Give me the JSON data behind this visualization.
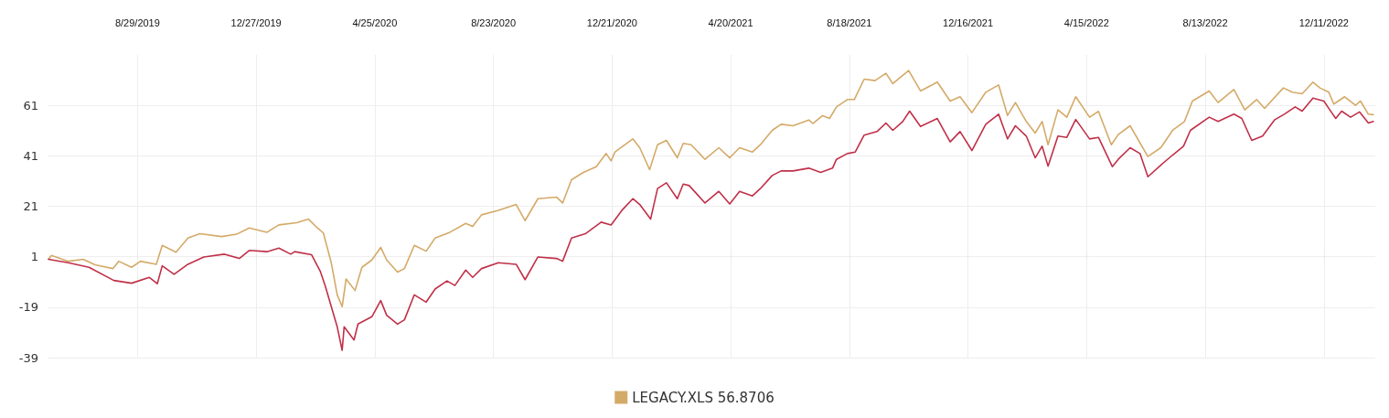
{
  "chart_data": {
    "type": "line",
    "xlim": [
      "2019-05-30",
      "2023-02-01"
    ],
    "xticks": [
      {
        "value": "2019-08-29",
        "label": "8/29/2019"
      },
      {
        "value": "2019-12-27",
        "label": "12/27/2019"
      },
      {
        "value": "2020-04-25",
        "label": "4/25/2020"
      },
      {
        "value": "2020-08-23",
        "label": "8/23/2020"
      },
      {
        "value": "2020-12-21",
        "label": "12/21/2020"
      },
      {
        "value": "2021-04-20",
        "label": "4/20/2021"
      },
      {
        "value": "2021-08-18",
        "label": "8/18/2021"
      },
      {
        "value": "2021-12-16",
        "label": "12/16/2021"
      },
      {
        "value": "2022-04-15",
        "label": "4/15/2022"
      },
      {
        "value": "2022-08-13",
        "label": "8/13/2022"
      },
      {
        "value": "2022-12-11",
        "label": "12/11/2022"
      }
    ],
    "ylim": [
      -39,
      81
    ],
    "yticks": [
      -39,
      -19,
      1,
      21,
      41,
      61
    ],
    "grid": true,
    "legend": "bottom",
    "series": [
      {
        "name": "LEGACY.XLS 56.8706",
        "color": "#d4aa68",
        "x": [
          "2019-05-31",
          "2019-06-03",
          "2019-06-20",
          "2019-07-05",
          "2019-07-17",
          "2019-08-04",
          "2019-08-10",
          "2019-08-23",
          "2019-09-01",
          "2019-09-17",
          "2019-09-23",
          "2019-10-07",
          "2019-10-19",
          "2019-10-31",
          "2019-11-22",
          "2019-12-07",
          "2019-12-20",
          "2020-01-07",
          "2020-01-19",
          "2020-02-06",
          "2020-02-18",
          "2020-02-27",
          "2020-03-04",
          "2020-03-12",
          "2020-03-18",
          "2020-03-23",
          "2020-03-27",
          "2020-04-05",
          "2020-04-12",
          "2020-04-22",
          "2020-05-01",
          "2020-05-07",
          "2020-05-18",
          "2020-05-25",
          "2020-06-04",
          "2020-06-16",
          "2020-06-25",
          "2020-07-10",
          "2020-07-26",
          "2020-08-02",
          "2020-08-11",
          "2020-08-28",
          "2020-09-15",
          "2020-09-24",
          "2020-10-07",
          "2020-10-26",
          "2020-11-01",
          "2020-11-10",
          "2020-11-22",
          "2020-12-05",
          "2020-12-15",
          "2020-12-20",
          "2020-12-24",
          "2021-01-11",
          "2021-01-18",
          "2021-01-28",
          "2021-02-05",
          "2021-02-14",
          "2021-02-25",
          "2021-03-03",
          "2021-03-11",
          "2021-03-25",
          "2021-04-08",
          "2021-04-19",
          "2021-04-29",
          "2021-05-12",
          "2021-05-20",
          "2021-06-01",
          "2021-06-10",
          "2021-06-22",
          "2021-07-08",
          "2021-07-12",
          "2021-07-22",
          "2021-07-29",
          "2021-08-05",
          "2021-08-16",
          "2021-08-23",
          "2021-09-02",
          "2021-09-13",
          "2021-09-24",
          "2021-10-01",
          "2021-10-17",
          "2021-10-29",
          "2021-11-15",
          "2021-11-28",
          "2021-12-08",
          "2021-12-20",
          "2022-01-03",
          "2022-01-16",
          "2022-01-25",
          "2022-02-02",
          "2022-02-13",
          "2022-02-22",
          "2022-03-01",
          "2022-03-07",
          "2022-03-17",
          "2022-03-26",
          "2022-04-04",
          "2022-04-18",
          "2022-04-27",
          "2022-05-10",
          "2022-05-17",
          "2022-05-29",
          "2022-06-16",
          "2022-06-29",
          "2022-07-11",
          "2022-07-23",
          "2022-07-31",
          "2022-08-17",
          "2022-08-26",
          "2022-09-11",
          "2022-09-22",
          "2022-10-04",
          "2022-10-12",
          "2022-10-31",
          "2022-11-09",
          "2022-11-19",
          "2022-11-30",
          "2022-12-07",
          "2022-12-16",
          "2022-12-21",
          "2023-01-01",
          "2023-01-12",
          "2023-01-17",
          "2023-01-25",
          "2023-01-30"
        ],
        "values": [
          0,
          1.5,
          -0.8,
          0,
          -2.2,
          -3.7,
          -0.8,
          -3.2,
          -0.8,
          -2,
          5.5,
          2.8,
          8.4,
          10.1,
          9,
          9.9,
          12.4,
          10.7,
          13.6,
          14.5,
          15.9,
          12.4,
          10.4,
          -1.4,
          -14.1,
          -18.8,
          -7.8,
          -12.4,
          -3.2,
          -0.3,
          4.7,
          -0.3,
          -5.1,
          -3.7,
          5.5,
          3.2,
          8.4,
          10.7,
          14.2,
          13,
          17.6,
          19.4,
          21.7,
          15.3,
          24,
          24.6,
          22.3,
          31.5,
          34.4,
          36.7,
          41.9,
          39,
          42.5,
          47.7,
          44.2,
          35.5,
          45.4,
          47.1,
          40.2,
          45.9,
          45.4,
          39.6,
          44.2,
          40.2,
          44.2,
          42.5,
          45.4,
          51.1,
          53.5,
          52.9,
          55.2,
          53.8,
          56.9,
          55.8,
          60.4,
          63.3,
          63.3,
          71.4,
          70.8,
          73.7,
          69.6,
          74.8,
          66.7,
          70.2,
          62.7,
          64.4,
          58.1,
          66.2,
          69.1,
          57,
          62.1,
          54.6,
          50,
          54.6,
          45.4,
          59.2,
          56.3,
          64.4,
          56.3,
          58.6,
          45.4,
          49.4,
          52.9,
          40.7,
          44.2,
          51.1,
          54.6,
          62.7,
          66.7,
          62.1,
          67.3,
          59.2,
          63.3,
          59.8,
          67.9,
          66.2,
          65.6,
          70.2,
          67.9,
          66.2,
          61.5,
          64.4,
          61,
          62.7,
          57.5,
          57.3
        ]
      },
      {
        "color": "#c03048",
        "x": [
          "2019-05-31",
          "2019-06-20",
          "2019-07-11",
          "2019-08-05",
          "2019-08-23",
          "2019-09-10",
          "2019-09-18",
          "2019-09-23",
          "2019-10-05",
          "2019-10-19",
          "2019-11-04",
          "2019-11-25",
          "2019-12-10",
          "2019-12-20",
          "2020-01-07",
          "2020-01-19",
          "2020-01-31",
          "2020-02-04",
          "2020-02-21",
          "2020-03-01",
          "2020-03-06",
          "2020-03-12",
          "2020-03-18",
          "2020-03-23",
          "2020-03-25",
          "2020-04-04",
          "2020-04-08",
          "2020-04-22",
          "2020-05-01",
          "2020-05-07",
          "2020-05-18",
          "2020-05-25",
          "2020-06-04",
          "2020-06-16",
          "2020-06-25",
          "2020-07-07",
          "2020-07-15",
          "2020-07-26",
          "2020-08-02",
          "2020-08-11",
          "2020-08-28",
          "2020-09-15",
          "2020-09-24",
          "2020-10-07",
          "2020-10-26",
          "2020-11-01",
          "2020-11-10",
          "2020-11-24",
          "2020-12-10",
          "2020-12-20",
          "2020-12-31",
          "2021-01-11",
          "2021-01-18",
          "2021-01-29",
          "2021-02-05",
          "2021-02-14",
          "2021-02-25",
          "2021-03-03",
          "2021-03-09",
          "2021-03-25",
          "2021-04-08",
          "2021-04-19",
          "2021-04-29",
          "2021-05-12",
          "2021-05-20",
          "2021-06-01",
          "2021-06-10",
          "2021-06-22",
          "2021-07-08",
          "2021-07-20",
          "2021-08-01",
          "2021-08-05",
          "2021-08-16",
          "2021-08-24",
          "2021-09-02",
          "2021-09-15",
          "2021-09-24",
          "2021-10-01",
          "2021-10-11",
          "2021-10-18",
          "2021-10-29",
          "2021-11-15",
          "2021-11-28",
          "2021-12-08",
          "2021-12-20",
          "2022-01-03",
          "2022-01-16",
          "2022-01-25",
          "2022-02-02",
          "2022-02-13",
          "2022-02-22",
          "2022-03-01",
          "2022-03-07",
          "2022-03-17",
          "2022-03-26",
          "2022-04-04",
          "2022-04-18",
          "2022-04-27",
          "2022-05-11",
          "2022-05-17",
          "2022-05-29",
          "2022-06-08",
          "2022-06-16",
          "2022-06-29",
          "2022-07-11",
          "2022-07-22",
          "2022-07-29",
          "2022-08-17",
          "2022-08-26",
          "2022-09-11",
          "2022-09-19",
          "2022-09-29",
          "2022-10-10",
          "2022-10-22",
          "2022-11-01",
          "2022-11-12",
          "2022-11-19",
          "2022-11-30",
          "2022-12-11",
          "2022-12-17",
          "2022-12-23",
          "2022-12-29",
          "2023-01-07",
          "2023-01-16",
          "2023-01-25",
          "2023-01-30"
        ],
        "values": [
          0,
          -1.4,
          -3.2,
          -8.4,
          -9.5,
          -7.2,
          -9.7,
          -2.6,
          -6,
          -2,
          0.9,
          2,
          0.3,
          3.5,
          3,
          4.4,
          2,
          3,
          1.8,
          -4.9,
          -10.7,
          -18.8,
          -26.8,
          -36.1,
          -26.8,
          -32,
          -25.7,
          -22.8,
          -16.4,
          -22.2,
          -25.7,
          -24,
          -14.1,
          -17,
          -11.8,
          -8.6,
          -10.4,
          -4.3,
          -7.2,
          -3.7,
          -1.4,
          -2,
          -8.1,
          0.9,
          0.3,
          -0.8,
          8.4,
          10.1,
          14.7,
          13.6,
          19.4,
          24,
          21.7,
          15.9,
          28,
          30.3,
          24,
          29.8,
          29.2,
          22.3,
          26.9,
          21.9,
          26.9,
          25.1,
          28,
          33.2,
          35,
          35,
          36.1,
          34.4,
          36.1,
          39.6,
          41.9,
          42.5,
          49.2,
          50.6,
          54,
          51.1,
          54.6,
          58.7,
          52.6,
          55.8,
          46.5,
          50.6,
          43.1,
          53.5,
          57.5,
          47.7,
          52.9,
          48.8,
          40.2,
          44.8,
          36.9,
          48.8,
          48.3,
          55.4,
          47.7,
          48.3,
          36.7,
          39.6,
          44.2,
          41.9,
          32.7,
          37.3,
          41.3,
          44.8,
          51.1,
          56.3,
          54.6,
          57.5,
          55.8,
          47.1,
          48.8,
          55.2,
          57.5,
          60.4,
          58.7,
          63.9,
          62.7,
          59.2,
          55.8,
          58.7,
          56.3,
          58.4,
          54,
          54.6
        ]
      }
    ]
  }
}
